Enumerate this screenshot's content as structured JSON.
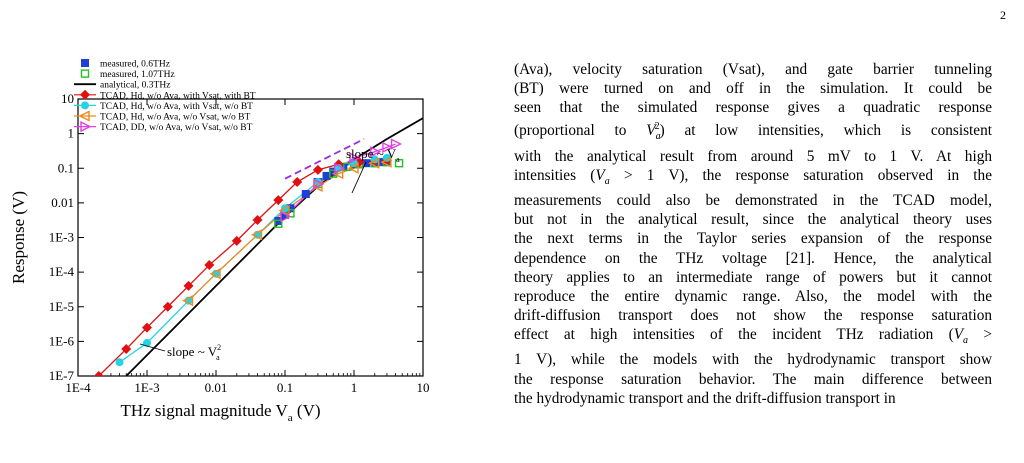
{
  "page_number": "2",
  "figure": {
    "legend": [
      {
        "label": "measured, 0.6THz",
        "color": "#1f3fd6",
        "marker": "square-filled"
      },
      {
        "label": "measured, 1.07THz",
        "color": "#22c022",
        "marker": "square-open"
      },
      {
        "label": "analytical, 0.3THz",
        "color": "#000000",
        "marker": "line"
      },
      {
        "label": "TCAD, Hd, w/o Ava, with Vsat, with BT",
        "color": "#e01010",
        "marker": "diamond"
      },
      {
        "label": "TCAD, Hd, w/o Ava, with Vsat, w/o BT",
        "color": "#22d4e6",
        "marker": "circle"
      },
      {
        "label": "TCAD, Hd, w/o Ava, w/o Vsat, w/o BT",
        "color": "#f08a1c",
        "marker": "triangle-left"
      },
      {
        "label": "TCAD, DD, w/o Ava, w/o Vsat, w/o BT",
        "color": "#e040e0",
        "marker": "triangle-right"
      }
    ],
    "annotation_slope_va": "slope ~ V",
    "annotation_slope_va_sub": "a",
    "annotation_slope_va2": "slope ~ V",
    "annotation_slope_va2_sup": "2",
    "annotation_slope_va2_sub": "a",
    "x_label": "THz signal magnitude V",
    "x_label_sub": "a",
    "x_label_unit": " (V)",
    "y_label": "Response (V)"
  },
  "chart_data": {
    "type": "scatter",
    "xlabel": "THz signal magnitude Va (V)",
    "ylabel": "Response (V)",
    "x_scale": "log",
    "y_scale": "log",
    "xlim": [
      0.0001,
      10
    ],
    "ylim": [
      1e-07,
      10
    ],
    "x_ticks": [
      "1E-4",
      "1E-3",
      "0.01",
      "0.1",
      "1",
      "10"
    ],
    "y_ticks": [
      "1E-7",
      "1E-6",
      "1E-5",
      "1E-4",
      "1E-3",
      "0.01",
      "0.1",
      "1",
      "10"
    ],
    "legend_position": "top-left",
    "series": [
      {
        "name": "measured, 0.6THz",
        "color": "#1f3fd6",
        "x": [
          0.08,
          0.1,
          0.12,
          0.2,
          0.3,
          0.4,
          0.5,
          0.7,
          1.0,
          1.5,
          2.0,
          2.5,
          3.0
        ],
        "y": [
          0.003,
          0.0045,
          0.007,
          0.018,
          0.04,
          0.06,
          0.08,
          0.11,
          0.13,
          0.14,
          0.14,
          0.15,
          0.15
        ]
      },
      {
        "name": "measured, 1.07THz",
        "color": "#22c022",
        "x": [
          0.08,
          0.12,
          0.3,
          0.5,
          0.8,
          1.2,
          2.0,
          3.0,
          4.5
        ],
        "y": [
          0.0025,
          0.005,
          0.035,
          0.07,
          0.11,
          0.13,
          0.14,
          0.15,
          0.14
        ]
      },
      {
        "name": "analytical, 0.3THz",
        "color": "#000000",
        "x": [
          0.0005,
          0.001,
          0.01,
          0.1,
          0.3,
          1,
          3,
          10
        ],
        "y": [
          1e-07,
          4e-07,
          4e-05,
          0.004,
          0.03,
          0.18,
          0.7,
          2.8
        ]
      },
      {
        "name": "TCAD, Hd, w/o Ava, with Vsat, with BT",
        "color": "#e01010",
        "x": [
          0.0002,
          0.0005,
          0.001,
          0.002,
          0.004,
          0.008,
          0.02,
          0.04,
          0.08,
          0.15,
          0.3,
          0.6,
          1.2,
          2.0,
          3.0
        ],
        "y": [
          1e-07,
          6e-07,
          2.5e-06,
          1e-05,
          4e-05,
          0.00016,
          0.0008,
          0.0032,
          0.012,
          0.04,
          0.09,
          0.13,
          0.15,
          0.16,
          0.17
        ]
      },
      {
        "name": "TCAD, Hd, w/o Ava, with Vsat, w/o BT",
        "color": "#22d4e6",
        "x": [
          0.0004,
          0.001,
          0.004,
          0.01,
          0.04,
          0.1,
          0.3,
          0.6,
          1.0,
          2.0,
          3.0
        ],
        "y": [
          2.5e-07,
          9e-07,
          1.5e-05,
          9e-05,
          0.0012,
          0.007,
          0.04,
          0.1,
          0.14,
          0.18,
          0.2
        ]
      },
      {
        "name": "TCAD, Hd, w/o Ava, w/o Vsat, w/o BT",
        "color": "#f08a1c",
        "x": [
          0.004,
          0.01,
          0.04,
          0.1,
          0.3,
          0.6,
          1.0,
          2.0,
          3.0
        ],
        "y": [
          1.5e-05,
          9e-05,
          0.0012,
          0.006,
          0.03,
          0.07,
          0.1,
          0.14,
          0.15
        ]
      },
      {
        "name": "TCAD, DD, w/o Ava, w/o Vsat, w/o BT",
        "color": "#e040e0",
        "x": [
          0.1,
          0.3,
          0.6,
          1.0,
          2.0,
          3.0,
          4.0
        ],
        "y": [
          0.004,
          0.035,
          0.1,
          0.2,
          0.3,
          0.4,
          0.5
        ]
      }
    ],
    "annotations": [
      "slope ~ Va",
      "slope ~ Va2"
    ]
  },
  "body_text": [
    "(Ava), velocity saturation (Vsat), and gate barrier tunneling",
    "(BT) were turned on and off in the simulation. It could be",
    "seen that the simulated response gives a quadratic response",
    "(proportional to Va2) at low intensities, which is consistent",
    "with the analytical result from around 5 mV to 1 V. At high",
    "intensities (Va > 1 V), the response saturation observed in the",
    "measurements could also be demonstrated in the TCAD model,",
    "but not in the analytical result, since the analytical theory uses",
    "the next terms in the Taylor series expansion of the response",
    "dependence on the THz voltage [21]. Hence, the analytical",
    "theory applies to an intermediate range of powers but it cannot",
    "reproduce the entire dynamic range. Also, the model with the",
    "drift-diffusion transport does not show the response saturation",
    "effect at high intensities of the incident THz radiation (Va >",
    "1 V), while the models with the hydrodynamic transport show",
    "the response saturation behavior. The main difference between",
    "the hydrodynamic transport and the drift-diffusion transport in"
  ]
}
